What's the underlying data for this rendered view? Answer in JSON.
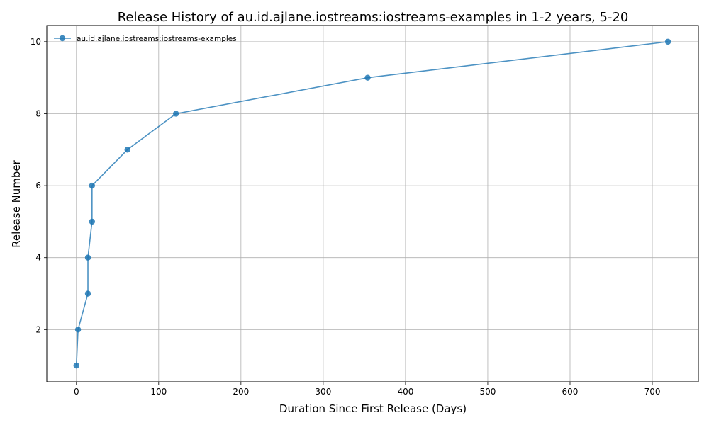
{
  "chart_data": {
    "type": "line",
    "title": "Release History of au.id.ajlane.iostreams:iostreams-examples in 1-2 years, 5-20",
    "xlabel": "Duration Since First Release (Days)",
    "ylabel": "Release Number",
    "xlim": [
      -36,
      756
    ],
    "ylim": [
      0.55,
      10.45
    ],
    "xticks": [
      0,
      100,
      200,
      300,
      400,
      500,
      600,
      700
    ],
    "yticks": [
      2,
      4,
      6,
      8,
      10
    ],
    "grid": true,
    "legend_position": "top-left",
    "series": [
      {
        "name": "au.id.ajlane.iostreams:iostreams-examples",
        "color": "#1f77b4",
        "marker": "circle",
        "x": [
          0,
          2,
          14,
          14,
          19,
          19,
          62,
          121,
          354,
          719
        ],
        "y": [
          1,
          2,
          3,
          4,
          5,
          6,
          7,
          8,
          9,
          10
        ]
      }
    ]
  }
}
